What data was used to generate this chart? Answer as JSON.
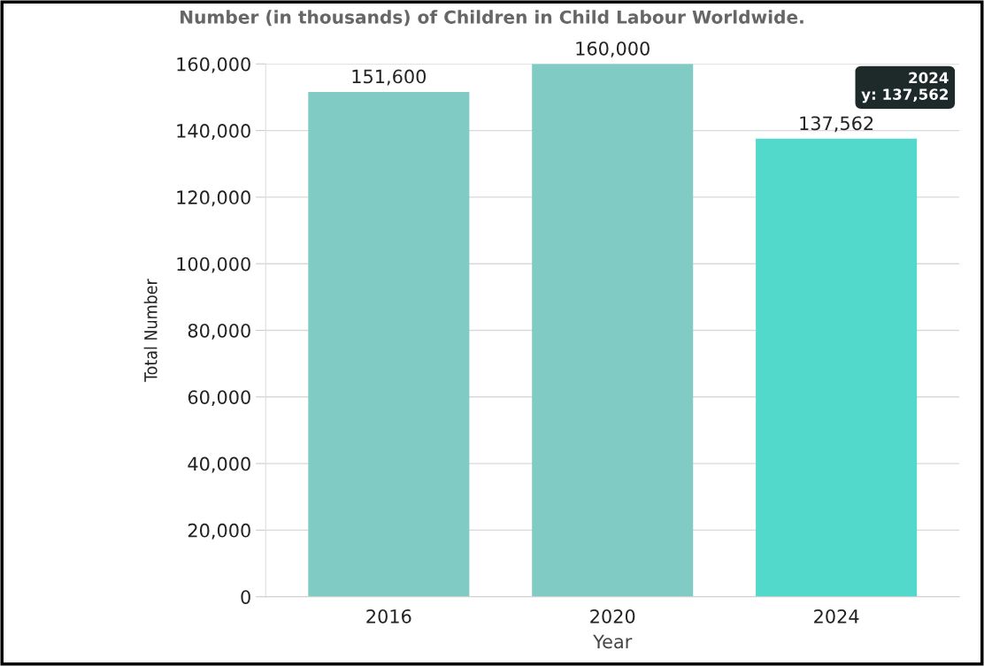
{
  "chart_data": {
    "type": "bar",
    "title": "Number (in thousands) of Children in Child Labour Worldwide.",
    "xlabel": "Year",
    "ylabel": "Total Number",
    "categories": [
      "2016",
      "2020",
      "2024"
    ],
    "values": [
      151600,
      160000,
      137562
    ],
    "colors": [
      "#80cbc4",
      "#80cbc4",
      "#52d9cc"
    ],
    "value_labels": [
      "151,600",
      "160,000",
      "137,562"
    ],
    "ylim": [
      0,
      160000
    ],
    "yticks": [
      {
        "value": 0,
        "label": "0"
      },
      {
        "value": 20000,
        "label": "20,000"
      },
      {
        "value": 40000,
        "label": "40,000"
      },
      {
        "value": 60000,
        "label": "60,000"
      },
      {
        "value": 80000,
        "label": "80,000"
      },
      {
        "value": 100000,
        "label": "100,000"
      },
      {
        "value": 120000,
        "label": "120,000"
      },
      {
        "value": 140000,
        "label": "140,000"
      },
      {
        "value": 160000,
        "label": "160,000"
      }
    ],
    "grid": "y",
    "legend": false,
    "annotations": [
      "2024",
      "y: 137,562"
    ]
  }
}
